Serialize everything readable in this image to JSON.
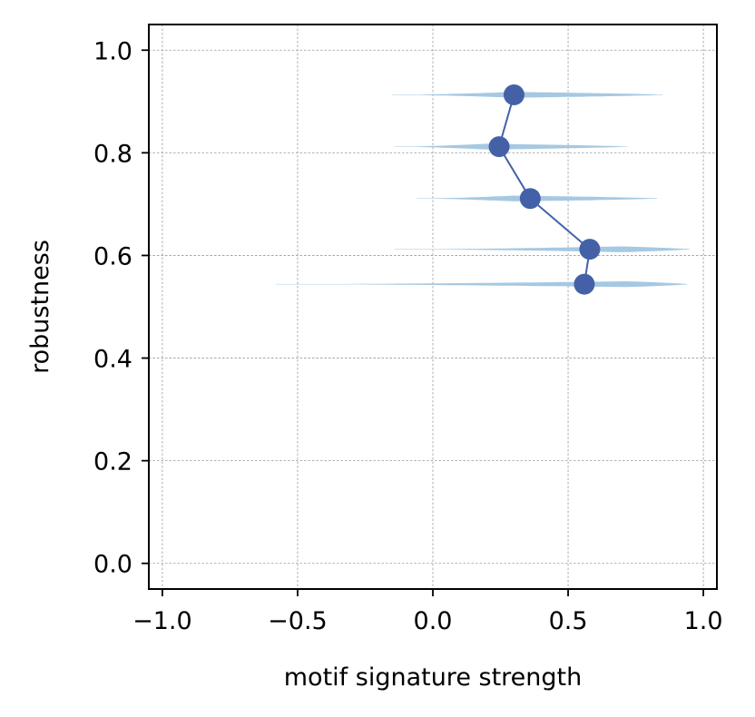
{
  "chart_data": {
    "type": "line",
    "title": "",
    "xlabel": "motif signature strength",
    "ylabel": "robustness",
    "xlim": [
      -1.05,
      1.05
    ],
    "ylim": [
      -0.05,
      1.05
    ],
    "xticks": [
      -1.0,
      -0.5,
      0.0,
      0.5,
      1.0
    ],
    "xtick_labels": [
      "−1.0",
      "−0.5",
      "0.0",
      "0.5",
      "1.0"
    ],
    "yticks": [
      0.0,
      0.2,
      0.4,
      0.6,
      0.8,
      1.0
    ],
    "ytick_labels": [
      "0.0",
      "0.2",
      "0.4",
      "0.6",
      "0.8",
      "1.0"
    ],
    "grid": true,
    "series": [
      {
        "points": [
          {
            "x": 0.3,
            "y": 0.913
          },
          {
            "x": 0.245,
            "y": 0.812
          },
          {
            "x": 0.36,
            "y": 0.711
          },
          {
            "x": 0.58,
            "y": 0.612
          },
          {
            "x": 0.56,
            "y": 0.544
          }
        ],
        "color": "#4461a8"
      }
    ],
    "distributions": [
      {
        "y": 0.913,
        "xmin": -0.15,
        "xmax": 0.85,
        "peak": 0.3
      },
      {
        "y": 0.812,
        "xmin": -0.14,
        "xmax": 0.72,
        "peak": 0.2
      },
      {
        "y": 0.711,
        "xmin": -0.06,
        "xmax": 0.83,
        "peak": 0.3
      },
      {
        "y": 0.612,
        "xmin": -0.14,
        "xmax": 0.95,
        "peak": 0.7
      },
      {
        "y": 0.544,
        "xmin": -0.58,
        "xmax": 0.94,
        "peak": 0.72
      }
    ],
    "distribution_color": "#a6c8e2"
  }
}
